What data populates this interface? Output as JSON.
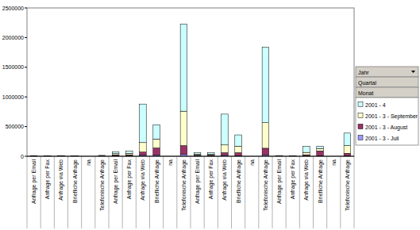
{
  "chart_data": {
    "type": "bar",
    "stacked": true,
    "grid": false,
    "legend": "right",
    "legend_fields": [
      "Jahr",
      "Quartal",
      "Monat"
    ],
    "categories": [
      "Anfrage per Email",
      "Anfrage per Fax",
      "Anfrage via Web",
      "Briefliche Anfrage",
      "na",
      "Telefonische Anfrage",
      "Anfrage per Email",
      "Anfrage per Fax",
      "Anfrage via Web",
      "Briefliche Anfrage",
      "na",
      "Telefonische Anfrage",
      "Anfrage per Email",
      "Anfrage per Fax",
      "Anfrage via Web",
      "Briefliche Anfrage",
      "na",
      "Telefonische Anfrage",
      "Anfrage per Email",
      "Anfrage per Fax",
      "Anfrage via Web",
      "Briefliche Anfrage",
      "na",
      "Telefonische Anfrage"
    ],
    "series": [
      {
        "name": "2001 - 3 - Juli",
        "color": "#9999ff",
        "values": [
          1000,
          500,
          2000,
          2000,
          0,
          3000,
          10000,
          10000,
          20000,
          20000,
          0,
          30000,
          8000,
          8000,
          15000,
          10000,
          0,
          25000,
          2000,
          1000,
          5000,
          10000,
          0,
          10000
        ]
      },
      {
        "name": "2001 - 3 - August",
        "color": "#993366",
        "values": [
          1000,
          500,
          2000,
          2000,
          0,
          3000,
          15000,
          15000,
          50000,
          120000,
          0,
          150000,
          12000,
          12000,
          45000,
          50000,
          0,
          110000,
          2000,
          2000,
          20000,
          80000,
          0,
          40000
        ]
      },
      {
        "name": "2001 - 3 - September",
        "color": "#ffffcc",
        "values": [
          1000,
          1000,
          3000,
          2000,
          0,
          4000,
          20000,
          25000,
          160000,
          150000,
          0,
          580000,
          15000,
          15000,
          130000,
          110000,
          0,
          430000,
          3000,
          3000,
          40000,
          40000,
          0,
          130000
        ]
      },
      {
        "name": "2001 - 4",
        "color": "#ccffff",
        "values": [
          2000,
          1000,
          5000,
          4000,
          0,
          5000,
          30000,
          35000,
          650000,
          240000,
          0,
          1470000,
          25000,
          25000,
          520000,
          190000,
          0,
          1275000,
          5000,
          4000,
          105000,
          40000,
          0,
          210000
        ]
      }
    ],
    "ylim": [
      0,
      2500000
    ],
    "yticks": [
      0,
      500000,
      1000000,
      1500000,
      2000000,
      2500000
    ]
  }
}
